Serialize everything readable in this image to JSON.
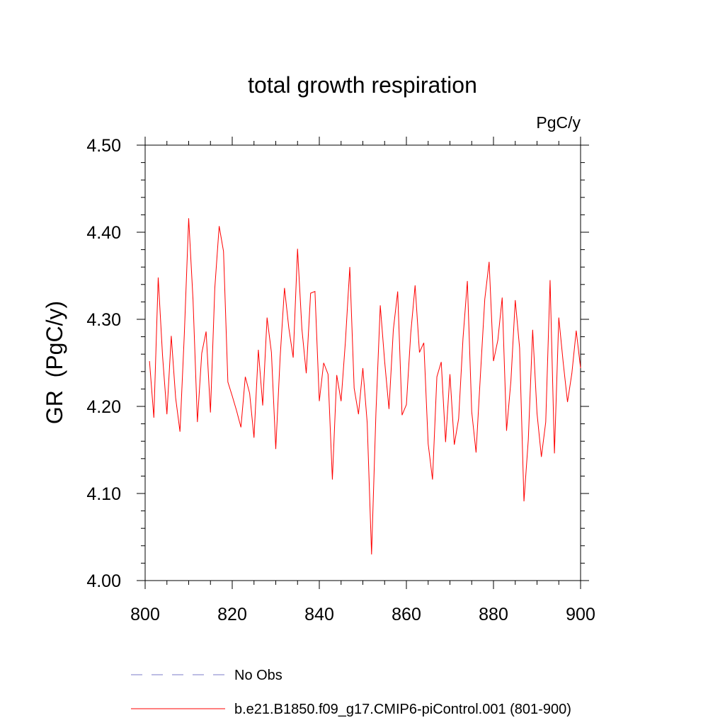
{
  "chart_data": {
    "type": "line",
    "title": "total growth respiration",
    "units_label": "PgC/y",
    "ylabel": "GR  (PgC/y)",
    "xlabel": "",
    "xlim": [
      800,
      900
    ],
    "ylim": [
      4.0,
      4.5
    ],
    "x_ticks": [
      800,
      820,
      840,
      860,
      880,
      900
    ],
    "x_tick_labels": [
      "800",
      "820",
      "840",
      "860",
      "880",
      "900"
    ],
    "y_ticks": [
      4.0,
      4.1,
      4.2,
      4.3,
      4.4,
      4.5
    ],
    "y_tick_labels": [
      "4.00",
      "4.10",
      "4.20",
      "4.30",
      "4.40",
      "4.50"
    ],
    "grid": false,
    "legend": [
      {
        "label": "No Obs",
        "style": "dashed",
        "color": "#7b7bc8"
      },
      {
        "label": "b.e21.B1850.f09_g17.CMIP6-piControl.001 (801-900)",
        "style": "solid",
        "color": "#ff0000"
      }
    ],
    "series": [
      {
        "name": "b.e21.B1850.f09_g17.CMIP6-piControl.001 (801-900)",
        "color": "#ff0000",
        "x_start": 801,
        "x_step": 1,
        "values": [
          4.252,
          4.187,
          4.348,
          4.258,
          4.191,
          4.281,
          4.21,
          4.171,
          4.283,
          4.416,
          4.322,
          4.182,
          4.261,
          4.286,
          4.193,
          4.336,
          4.407,
          4.378,
          4.228,
          4.212,
          4.195,
          4.176,
          4.234,
          4.215,
          4.164,
          4.265,
          4.201,
          4.302,
          4.262,
          4.151,
          4.256,
          4.336,
          4.29,
          4.256,
          4.381,
          4.289,
          4.238,
          4.33,
          4.332,
          4.206,
          4.25,
          4.237,
          4.116,
          4.236,
          4.206,
          4.275,
          4.36,
          4.221,
          4.191,
          4.244,
          4.181,
          4.03,
          4.192,
          4.316,
          4.252,
          4.197,
          4.288,
          4.332,
          4.19,
          4.202,
          4.284,
          4.339,
          4.262,
          4.273,
          4.157,
          4.116,
          4.234,
          4.251,
          4.159,
          4.237,
          4.156,
          4.186,
          4.278,
          4.344,
          4.194,
          4.147,
          4.236,
          4.323,
          4.366,
          4.252,
          4.276,
          4.325,
          4.172,
          4.229,
          4.322,
          4.267,
          4.091,
          4.162,
          4.288,
          4.192,
          4.142,
          4.182,
          4.345,
          4.146,
          4.302,
          4.251,
          4.205,
          4.238,
          4.287,
          4.244
        ]
      }
    ]
  }
}
